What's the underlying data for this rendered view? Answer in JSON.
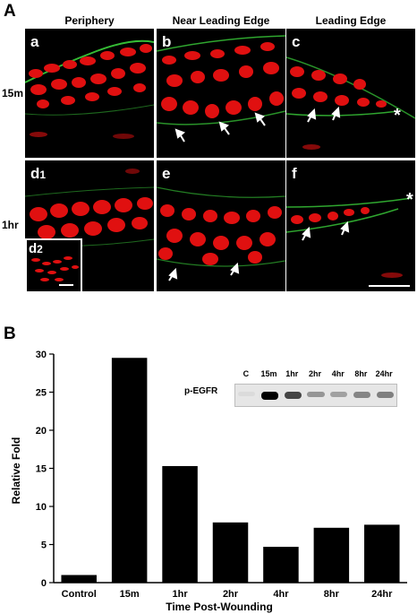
{
  "panel_a": {
    "letter": "A",
    "columns": [
      "Periphery",
      "Near Leading Edge",
      "Leading Edge"
    ],
    "rows": [
      "15m",
      "1hr"
    ],
    "sub_labels": {
      "a": "a",
      "b": "b",
      "c": "c",
      "d1_main": "d",
      "d1_sub": "1",
      "e": "e",
      "f": "f",
      "d2_main": "d",
      "d2_sub": "2"
    },
    "asterisk": "*",
    "colors": {
      "nuclei": "#e01010",
      "membrane": "#3bd03b",
      "background": "#000000"
    }
  },
  "panel_b": {
    "letter": "B",
    "blot": {
      "row_label": "p-EGFR",
      "lanes": [
        "C",
        "15m",
        "1hr",
        "2hr",
        "4hr",
        "8hr",
        "24hr"
      ],
      "band_intensity": [
        0.05,
        1.0,
        0.7,
        0.35,
        0.3,
        0.42,
        0.45
      ]
    }
  },
  "chart_data": {
    "type": "bar",
    "categories": [
      "Control",
      "15m",
      "1hr",
      "2hr",
      "4hr",
      "8hr",
      "24hr"
    ],
    "values": [
      1,
      29.5,
      15.3,
      7.9,
      4.7,
      7.2,
      7.6
    ],
    "ylim": [
      0,
      30
    ],
    "yticks": [
      0,
      5,
      10,
      15,
      20,
      25,
      30
    ],
    "ylabel": "Relative Fold",
    "xlabel": "Time Post-Wounding",
    "bar_color": "#000000",
    "grid": false
  }
}
